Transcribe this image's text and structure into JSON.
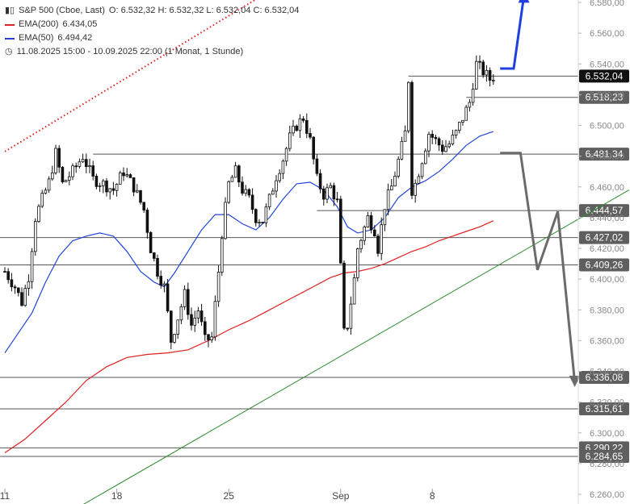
{
  "header": {
    "symbol": "S&P 500 (Cboe, Last)",
    "ohlc": "O: 6.532,32  H: 6.532,32  L: 6.532,04  C: 6.532,04",
    "ema200_label": "EMA(200)",
    "ema200_value": "6.434,05",
    "ema50_label": "EMA(50)",
    "ema50_value": "6.494,42",
    "range": "11.08.2025 15:00 - 10.09.2025 22:00   (1 Monat, 1 Stunde)"
  },
  "colors": {
    "ema200": "#e02020",
    "ema50": "#2244dd",
    "trend": "#2e8b2e",
    "arrow_up": "#1f3fe0",
    "arrow_down": "#6b6b6b",
    "level_line": "#555555",
    "badge": "#5f5f5f",
    "candles": "#111111"
  },
  "chart_data": {
    "type": "candlestick",
    "ylim": [
      6255,
      6585
    ],
    "y_ticks": [
      "6.580,00",
      "6.560,00",
      "6.540,00",
      "6.520,00",
      "6.500,00",
      "6.480,00",
      "6.460,00",
      "6.440,00",
      "6.420,00",
      "6.400,00",
      "6.380,00",
      "6.360,00",
      "6.340,00",
      "6.320,00",
      "6.300,00",
      "6.280,00",
      "6.260,00"
    ],
    "y_tick_values": [
      6580,
      6560,
      6540,
      6520,
      6500,
      6480,
      6460,
      6440,
      6420,
      6400,
      6380,
      6360,
      6340,
      6320,
      6300,
      6280,
      6260
    ],
    "x_ticks": [
      "11",
      "18",
      "25",
      "Sep",
      "8"
    ],
    "x_tick_index": [
      0,
      33,
      66,
      99,
      126
    ],
    "levels": [
      {
        "value": 6532.04,
        "label": "6.532,04",
        "current": true
      },
      {
        "value": 6518.23,
        "label": "6.518,23"
      },
      {
        "value": 6481.34,
        "label": "6.481,34"
      },
      {
        "value": 6444.57,
        "label": "6.444,57"
      },
      {
        "value": 6427.02,
        "label": "6.427,02"
      },
      {
        "value": 6409.26,
        "label": "6.409,26"
      },
      {
        "value": 6336.08,
        "label": "6.336,08"
      },
      {
        "value": 6315.61,
        "label": "6.315,61"
      },
      {
        "value": 6290.22,
        "label": "6.290,22"
      },
      {
        "value": 6284.65,
        "label": "6.284,65"
      }
    ],
    "anchors": [
      [
        0,
        6405
      ],
      [
        3,
        6395
      ],
      [
        5,
        6385
      ],
      [
        7,
        6402
      ],
      [
        9,
        6440
      ],
      [
        11,
        6452
      ],
      [
        13,
        6463
      ],
      [
        15,
        6482
      ],
      [
        17,
        6462
      ],
      [
        20,
        6470
      ],
      [
        23,
        6480
      ],
      [
        26,
        6465
      ],
      [
        29,
        6462
      ],
      [
        32,
        6458
      ],
      [
        35,
        6470
      ],
      [
        38,
        6460
      ],
      [
        41,
        6445
      ],
      [
        43,
        6420
      ],
      [
        45,
        6405
      ],
      [
        47,
        6395
      ],
      [
        49,
        6360
      ],
      [
        51,
        6375
      ],
      [
        53,
        6390
      ],
      [
        55,
        6370
      ],
      [
        57,
        6380
      ],
      [
        59,
        6360
      ],
      [
        61,
        6362
      ],
      [
        63,
        6405
      ],
      [
        64,
        6430
      ],
      [
        66,
        6462
      ],
      [
        68,
        6470
      ],
      [
        70,
        6458
      ],
      [
        72,
        6452
      ],
      [
        74,
        6440
      ],
      [
        76,
        6438
      ],
      [
        78,
        6452
      ],
      [
        80,
        6467
      ],
      [
        82,
        6478
      ],
      [
        84,
        6492
      ],
      [
        86,
        6500
      ],
      [
        88,
        6505
      ],
      [
        90,
        6490
      ],
      [
        92,
        6465
      ],
      [
        94,
        6455
      ],
      [
        96,
        6460
      ],
      [
        98,
        6450
      ],
      [
        100,
        6365
      ],
      [
        101,
        6370
      ],
      [
        103,
        6400
      ],
      [
        104,
        6420
      ],
      [
        107,
        6440
      ],
      [
        109,
        6432
      ],
      [
        110,
        6420
      ],
      [
        112,
        6448
      ],
      [
        114,
        6460
      ],
      [
        116,
        6477
      ],
      [
        118,
        6495
      ],
      [
        119,
        6530
      ],
      [
        120,
        6458
      ],
      [
        121,
        6462
      ],
      [
        123,
        6478
      ],
      [
        125,
        6495
      ],
      [
        127,
        6490
      ],
      [
        129,
        6485
      ],
      [
        131,
        6488
      ],
      [
        133,
        6495
      ],
      [
        135,
        6505
      ],
      [
        137,
        6515
      ],
      [
        139,
        6540
      ],
      [
        141,
        6535
      ],
      [
        143,
        6530
      ],
      [
        144,
        6532
      ]
    ],
    "ema50": [
      [
        0,
        6352
      ],
      [
        4,
        6365
      ],
      [
        8,
        6378
      ],
      [
        12,
        6398
      ],
      [
        16,
        6415
      ],
      [
        20,
        6425
      ],
      [
        24,
        6428
      ],
      [
        28,
        6430
      ],
      [
        32,
        6428
      ],
      [
        36,
        6418
      ],
      [
        40,
        6405
      ],
      [
        44,
        6398
      ],
      [
        47,
        6395
      ],
      [
        50,
        6404
      ],
      [
        54,
        6418
      ],
      [
        58,
        6432
      ],
      [
        62,
        6442
      ],
      [
        66,
        6442
      ],
      [
        70,
        6436
      ],
      [
        74,
        6432
      ],
      [
        78,
        6440
      ],
      [
        82,
        6452
      ],
      [
        86,
        6462
      ],
      [
        90,
        6463
      ],
      [
        94,
        6458
      ],
      [
        98,
        6447
      ],
      [
        101,
        6434
      ],
      [
        104,
        6430
      ],
      [
        108,
        6432
      ],
      [
        112,
        6440
      ],
      [
        116,
        6453
      ],
      [
        120,
        6460
      ],
      [
        124,
        6464
      ],
      [
        128,
        6470
      ],
      [
        132,
        6478
      ],
      [
        136,
        6487
      ],
      [
        140,
        6493
      ],
      [
        144,
        6496
      ]
    ],
    "ema200": [
      [
        0,
        6287
      ],
      [
        6,
        6296
      ],
      [
        12,
        6308
      ],
      [
        18,
        6320
      ],
      [
        24,
        6334
      ],
      [
        30,
        6343
      ],
      [
        36,
        6349
      ],
      [
        42,
        6351
      ],
      [
        48,
        6352
      ],
      [
        54,
        6354
      ],
      [
        60,
        6360
      ],
      [
        66,
        6367
      ],
      [
        72,
        6373
      ],
      [
        78,
        6380
      ],
      [
        84,
        6387
      ],
      [
        90,
        6394
      ],
      [
        96,
        6401
      ],
      [
        100,
        6404
      ],
      [
        104,
        6405
      ],
      [
        108,
        6407
      ],
      [
        112,
        6410
      ],
      [
        116,
        6414
      ],
      [
        120,
        6418
      ],
      [
        124,
        6421
      ],
      [
        128,
        6425
      ],
      [
        132,
        6428
      ],
      [
        136,
        6431
      ],
      [
        140,
        6434
      ],
      [
        144,
        6438
      ]
    ],
    "trendline_red_dotted": [
      [
        0,
        6483
      ],
      [
        80,
        6590
      ]
    ],
    "trendline_green": [
      [
        22,
        6252
      ],
      [
        184,
        6458
      ]
    ],
    "arrow_up_path": [
      [
        146,
        6537
      ],
      [
        150,
        6537
      ],
      [
        153,
        6584
      ]
    ],
    "arrow_down_path": [
      [
        146,
        6482
      ],
      [
        152,
        6482
      ],
      [
        157,
        6406
      ],
      [
        163,
        6444
      ],
      [
        168,
        6333
      ]
    ]
  }
}
